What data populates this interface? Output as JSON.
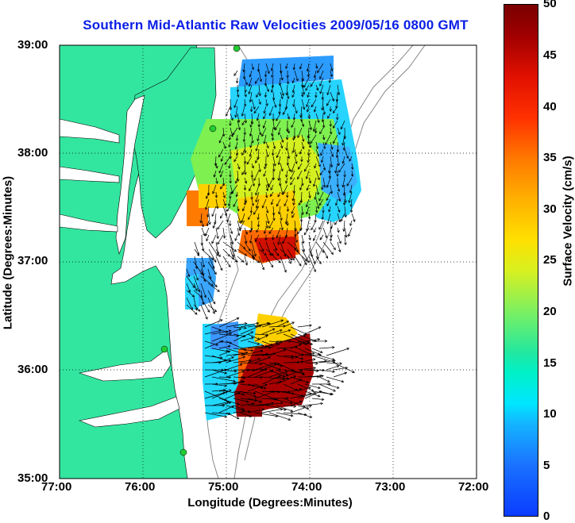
{
  "title": "Southern Mid-Atlantic Raw Velocities 2009/05/16 0800 GMT",
  "xlabel": "Longitude (Degrees:Minutes)",
  "ylabel": "Latitude (Degrees:Minutes)",
  "x_ticks": [
    "77:00",
    "76:00",
    "75:00",
    "74:00",
    "73:00",
    "72:00"
  ],
  "y_ticks": [
    "39:00",
    "38:00",
    "37:00",
    "36:00",
    "35:00"
  ],
  "colorbar": {
    "label": "Surface Velocity (cm/s)",
    "ticks": [
      "50",
      "45",
      "40",
      "35",
      "30",
      "25",
      "20",
      "15",
      "10",
      "5",
      "0"
    ]
  },
  "colors": {
    "land": "#33e6a0",
    "title": "#0a1ee6",
    "station": "#22cc33"
  },
  "legend_icons": [
    "land-area",
    "velocity-field",
    "velocity-arrow",
    "bathymetry-contour",
    "coastal-station"
  ]
}
